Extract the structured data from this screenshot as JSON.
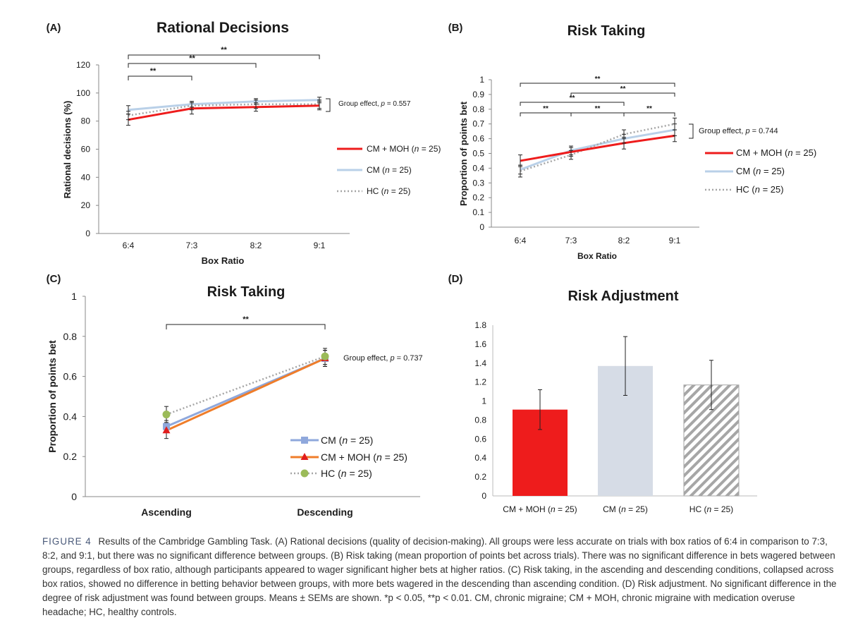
{
  "figure": {
    "caption_label": "FIGURE 4",
    "caption_text": "Results of the Cambridge Gambling Task. (A) Rational decisions (quality of decision-making). All groups were less accurate on trials with box ratios of 6:4 in comparison to 7:3, 8:2, and 9:1, but there was no significant difference between groups. (B) Risk taking (mean proportion of points bet across trials). There was no significant difference in bets wagered between groups, regardless of box ratio, although participants appeared to wager significant higher bets at higher ratios. (C) Risk taking, in the ascending and descending conditions, collapsed across box ratios, showed no difference in betting behavior between groups, with more bets wagered in the descending than ascending condition. (D) Risk adjustment. No significant difference in the degree of risk adjustment was found between groups. Means ± SEMs are shown. *p < 0.05, **p < 0.01. CM, chronic migraine; CM + MOH, chronic migraine with medication overuse headache; HC, healthy controls."
  },
  "colors": {
    "cm_moh": "#ee1c1c",
    "cm": "#b9d0e8",
    "hc": "#a6a6a6",
    "cm_c": "#8fa8dc",
    "cm_moh_c": "#ef7d2a",
    "hc_c": "#9bbb59",
    "cm_bar": "#d6dce6"
  },
  "chart_data": [
    {
      "panel": "(A)",
      "type": "line",
      "title": "Rational Decisions",
      "xlabel": "Box Ratio",
      "ylabel": "Rational decisions (%)",
      "categories": [
        "6:4",
        "7:3",
        "8:2",
        "9:1"
      ],
      "ylim": [
        0,
        120
      ],
      "yticks": [
        "0",
        "20",
        "40",
        "60",
        "80",
        "100",
        "120"
      ],
      "series": [
        {
          "name": "CM + MOH (n = 25)",
          "values": [
            81,
            89,
            90,
            91
          ],
          "errors": [
            4,
            4,
            3,
            3
          ]
        },
        {
          "name": "CM (n = 25)",
          "values": [
            88,
            92,
            94,
            95
          ],
          "errors": [
            3,
            2,
            2,
            2
          ]
        },
        {
          "name": "HC (n = 25)",
          "values": [
            84,
            91,
            92,
            92
          ],
          "errors": [
            3,
            3,
            3,
            3
          ]
        }
      ],
      "significance": [
        {
          "from": "6:4",
          "to": "7:3",
          "label": "**"
        },
        {
          "from": "6:4",
          "to": "8:2",
          "label": "**"
        },
        {
          "from": "6:4",
          "to": "9:1",
          "label": "**"
        }
      ],
      "annotation": "Group effect, p = 0.557",
      "legend": "right"
    },
    {
      "panel": "(B)",
      "type": "line",
      "title": "Risk Taking",
      "xlabel": "Box Ratio",
      "ylabel": "Proportion of points bet",
      "categories": [
        "6:4",
        "7:3",
        "8:2",
        "9:1"
      ],
      "ylim": [
        0,
        1
      ],
      "yticks": [
        "0",
        "0.1",
        "0.2",
        "0.3",
        "0.4",
        "0.5",
        "0.6",
        "0.7",
        "0.8",
        "0.9",
        "1"
      ],
      "series": [
        {
          "name": "CM + MOH (n = 25)",
          "values": [
            0.45,
            0.51,
            0.57,
            0.62
          ],
          "errors": [
            0.04,
            0.03,
            0.04,
            0.04
          ]
        },
        {
          "name": "CM (n = 25)",
          "values": [
            0.39,
            0.52,
            0.6,
            0.66
          ],
          "errors": [
            0.03,
            0.03,
            0.03,
            0.04
          ]
        },
        {
          "name": "HC (n = 25)",
          "values": [
            0.38,
            0.49,
            0.63,
            0.7
          ],
          "errors": [
            0.04,
            0.03,
            0.03,
            0.04
          ]
        }
      ],
      "significance": [
        {
          "from": "6:4",
          "to": "7:3",
          "label": "**"
        },
        {
          "from": "7:3",
          "to": "8:2",
          "label": "**"
        },
        {
          "from": "8:2",
          "to": "9:1",
          "label": "**"
        },
        {
          "from": "6:4",
          "to": "8:2",
          "label": "**"
        },
        {
          "from": "7:3",
          "to": "9:1",
          "label": "**"
        },
        {
          "from": "6:4",
          "to": "9:1",
          "label": "**"
        }
      ],
      "annotation": "Group effect, p = 0.744",
      "legend": "right"
    },
    {
      "panel": "(C)",
      "type": "line",
      "title": "Risk Taking",
      "xlabel": "",
      "ylabel": "Proportion of points bet",
      "categories": [
        "Ascending",
        "Descending"
      ],
      "ylim": [
        0,
        1
      ],
      "yticks": [
        "0",
        "0.2",
        "0.4",
        "0.6",
        "0.8",
        "1"
      ],
      "series": [
        {
          "name": "CM (n = 25)",
          "values": [
            0.35,
            0.69
          ],
          "errors": [
            0.03,
            0.04
          ]
        },
        {
          "name": "CM + MOH (n = 25)",
          "values": [
            0.33,
            0.69
          ],
          "errors": [
            0.04,
            0.04
          ]
        },
        {
          "name": "HC (n = 25)",
          "values": [
            0.41,
            0.7
          ],
          "errors": [
            0.04,
            0.04
          ]
        }
      ],
      "significance": [
        {
          "from": "Ascending",
          "to": "Descending",
          "label": "**"
        }
      ],
      "annotation": "Group effect, p = 0.737",
      "legend": "bottom-right"
    },
    {
      "panel": "(D)",
      "type": "bar",
      "title": "Risk Adjustment",
      "xlabel": "",
      "ylabel": "",
      "categories": [
        "CM + MOH (n = 25)",
        "CM (n = 25)",
        "HC (n = 25)"
      ],
      "values": [
        0.91,
        1.37,
        1.17
      ],
      "errors": [
        0.21,
        0.31,
        0.26
      ],
      "ylim": [
        0,
        1.8
      ],
      "yticks": [
        "0",
        "0.2",
        "0.4",
        "0.6",
        "0.8",
        "1",
        "1.2",
        "1.4",
        "1.6",
        "1.8"
      ],
      "legend": "none"
    }
  ]
}
